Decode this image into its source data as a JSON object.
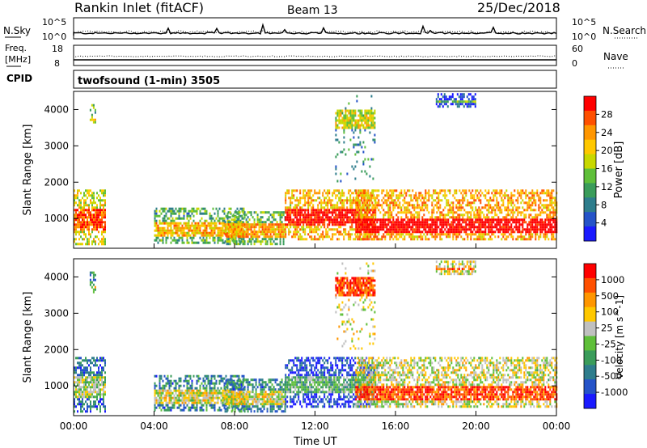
{
  "header": {
    "station": "Rankin Inlet (fitACF)",
    "beam": "Beam 13",
    "date": "25/Dec/2018"
  },
  "summary_panels": {
    "nsky_label": "N.Sky",
    "nsky_ticks": [
      "10^5",
      "10^0"
    ],
    "nsearch_label": "N.Search",
    "nsearch_ticks": [
      "10^5",
      "10^0"
    ],
    "freq_label_1": "Freq.",
    "freq_label_2": "[MHz]",
    "freq_ticks": [
      "18",
      "8"
    ],
    "nave_label": "Nave",
    "nave_ticks": [
      "60",
      "0"
    ],
    "cpid_label": "CPID",
    "cpid_text": "twofsound (1-min) 3505"
  },
  "colors": {
    "power": [
      "#1a1aff",
      "#2553c8",
      "#2e7d8c",
      "#3a9c5a",
      "#5fbf3a",
      "#c8d800",
      "#ffc800",
      "#ff9600",
      "#ff5000",
      "#ff0000"
    ],
    "velocity": [
      "#1a1aff",
      "#2553c8",
      "#2e7d8c",
      "#3a9c5a",
      "#5fbf3a",
      "#c0c0c0",
      "#ffc800",
      "#ff9600",
      "#ff5000",
      "#ff0000"
    ]
  },
  "chart_data": [
    {
      "type": "heatmap",
      "quantity": "power",
      "ylabel": "Slant Range [km]",
      "xlabel": "",
      "x_ticks": [
        "00:00",
        "04:00",
        "08:00",
        "12:00",
        "16:00",
        "20:00",
        "00:00"
      ],
      "xlim_hours": [
        0,
        24
      ],
      "y_ticks": [
        1000,
        2000,
        3000,
        4000
      ],
      "ylim": [
        180,
        4500
      ],
      "colorbar_label": "Power [dB]",
      "colorbar_ticks": [
        "28",
        "24",
        "20",
        "16",
        "12",
        "8",
        "4"
      ],
      "clusters": [
        {
          "t": [
            0,
            1.6
          ],
          "r": [
            300,
            1800
          ],
          "core": [
            700,
            1300
          ],
          "level": 0.75
        },
        {
          "t": [
            0.8,
            1.1
          ],
          "r": [
            3550,
            4150
          ],
          "core": [
            3700,
            3800
          ],
          "level": 0.6
        },
        {
          "t": [
            4,
            8.5
          ],
          "r": [
            300,
            1300
          ],
          "core": [
            500,
            900
          ],
          "level": 0.55
        },
        {
          "t": [
            7.5,
            10.5
          ],
          "r": [
            300,
            1200
          ],
          "core": [
            500,
            900
          ],
          "level": 0.6
        },
        {
          "t": [
            10.5,
            15
          ],
          "r": [
            400,
            1800
          ],
          "core": [
            800,
            1300
          ],
          "level": 0.85
        },
        {
          "t": [
            14,
            24
          ],
          "r": [
            400,
            1800
          ],
          "core": [
            600,
            1000
          ],
          "level": 0.9
        },
        {
          "t": [
            13,
            15
          ],
          "r": [
            2000,
            4400
          ],
          "core": [
            3500,
            4000
          ],
          "level": 0.45
        },
        {
          "t": [
            18,
            20
          ],
          "r": [
            4100,
            4450
          ],
          "core": [
            4200,
            4300
          ],
          "level": 0.3
        }
      ]
    },
    {
      "type": "heatmap",
      "quantity": "velocity",
      "ylabel": "Slant Range [km]",
      "xlabel": "Time UT",
      "x_ticks": [
        "00:00",
        "04:00",
        "08:00",
        "12:00",
        "16:00",
        "20:00",
        "00:00"
      ],
      "xlim_hours": [
        0,
        24
      ],
      "y_ticks": [
        1000,
        2000,
        3000,
        4000
      ],
      "ylim": [
        180,
        4500
      ],
      "colorbar_label": "Velocity [m s^-1]",
      "colorbar_ticks": [
        "1000",
        "500",
        "100",
        "25",
        "-25",
        "-100",
        "-500",
        "-1000"
      ],
      "clusters": [
        {
          "t": [
            0,
            1.6
          ],
          "r": [
            300,
            1800
          ],
          "core": [
            700,
            1300
          ],
          "level": 0.4
        },
        {
          "t": [
            0.8,
            1.1
          ],
          "r": [
            3550,
            4150
          ],
          "core": [
            3700,
            3800
          ],
          "level": 0.5
        },
        {
          "t": [
            4,
            8.5
          ],
          "r": [
            300,
            1300
          ],
          "core": [
            500,
            900
          ],
          "level": 0.45
        },
        {
          "t": [
            7.5,
            10.5
          ],
          "r": [
            300,
            1200
          ],
          "core": [
            500,
            900
          ],
          "level": 0.45
        },
        {
          "t": [
            10.5,
            15
          ],
          "r": [
            400,
            1800
          ],
          "core": [
            800,
            1300
          ],
          "level": 0.3
        },
        {
          "t": [
            14,
            24
          ],
          "r": [
            400,
            1800
          ],
          "core": [
            600,
            1000
          ],
          "level": 0.75
        },
        {
          "t": [
            13,
            15
          ],
          "r": [
            2000,
            4400
          ],
          "core": [
            3500,
            4000
          ],
          "level": 0.75
        },
        {
          "t": [
            18,
            20
          ],
          "r": [
            4100,
            4450
          ],
          "core": [
            4200,
            4300
          ],
          "level": 0.75
        }
      ]
    }
  ]
}
